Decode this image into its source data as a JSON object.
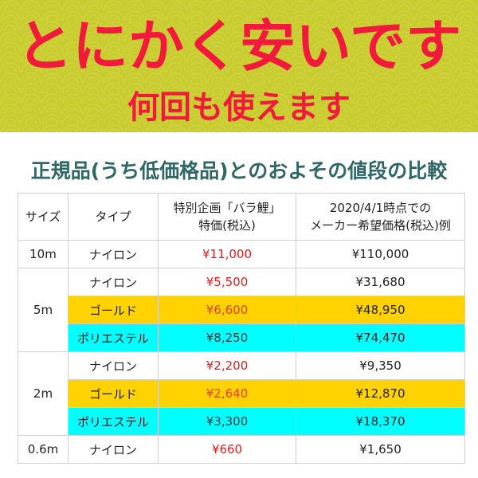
{
  "banner": {
    "headline": "とにかく安いです",
    "subline": "何回も使えます",
    "bg_color": "#c8cc2c",
    "text_color": "#f2193c"
  },
  "title": "正規品(うち低価格品)とのおよその値段の比較",
  "table": {
    "headers": [
      "サイズ",
      "タイプ",
      "特別企画「バラ鯉」\n特価(税込)",
      "2020/4/1時点での\nメーカー希望価格(税込)例"
    ],
    "groups": [
      {
        "size": "10m",
        "rows": [
          {
            "type": "ナイロン",
            "special": "¥11,000",
            "msrp": "¥110,000",
            "color": ""
          }
        ]
      },
      {
        "size": "5m",
        "rows": [
          {
            "type": "ナイロン",
            "special": "¥5,500",
            "msrp": "¥31,680",
            "color": ""
          },
          {
            "type": "ゴールド",
            "special": "¥6,600",
            "msrp": "¥48,950",
            "color": "#ffd200"
          },
          {
            "type": "ポリエステル",
            "special": "¥8,250",
            "msrp": "¥74,470",
            "color": "#00ffff"
          }
        ]
      },
      {
        "size": "2m",
        "rows": [
          {
            "type": "ナイロン",
            "special": "¥2,200",
            "msrp": "¥9,350",
            "color": ""
          },
          {
            "type": "ゴールド",
            "special": "¥2,640",
            "msrp": "¥12,870",
            "color": "#ffd200"
          },
          {
            "type": "ポリエステル",
            "special": "¥3,300",
            "msrp": "¥18,370",
            "color": "#00ffff"
          }
        ]
      },
      {
        "size": "0.6m",
        "rows": [
          {
            "type": "ナイロン",
            "special": "¥660",
            "msrp": "¥1,650",
            "color": ""
          }
        ]
      }
    ]
  }
}
